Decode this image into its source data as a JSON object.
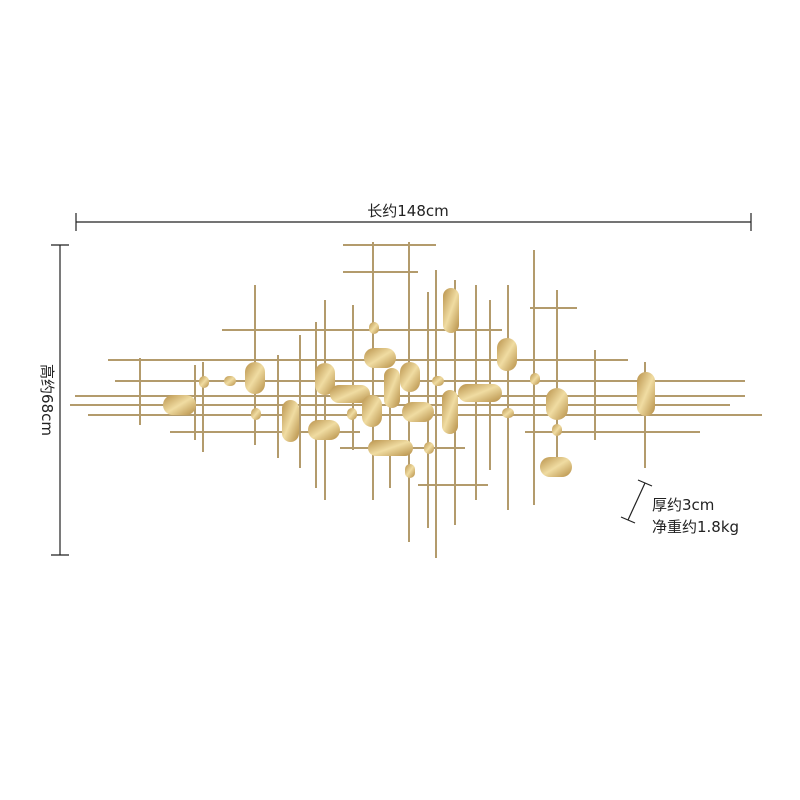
{
  "dimensions": {
    "width": "长约148cm",
    "height": "高约68cm",
    "thickness": "厚约3cm",
    "weight": "净重约1.8kg"
  }
}
